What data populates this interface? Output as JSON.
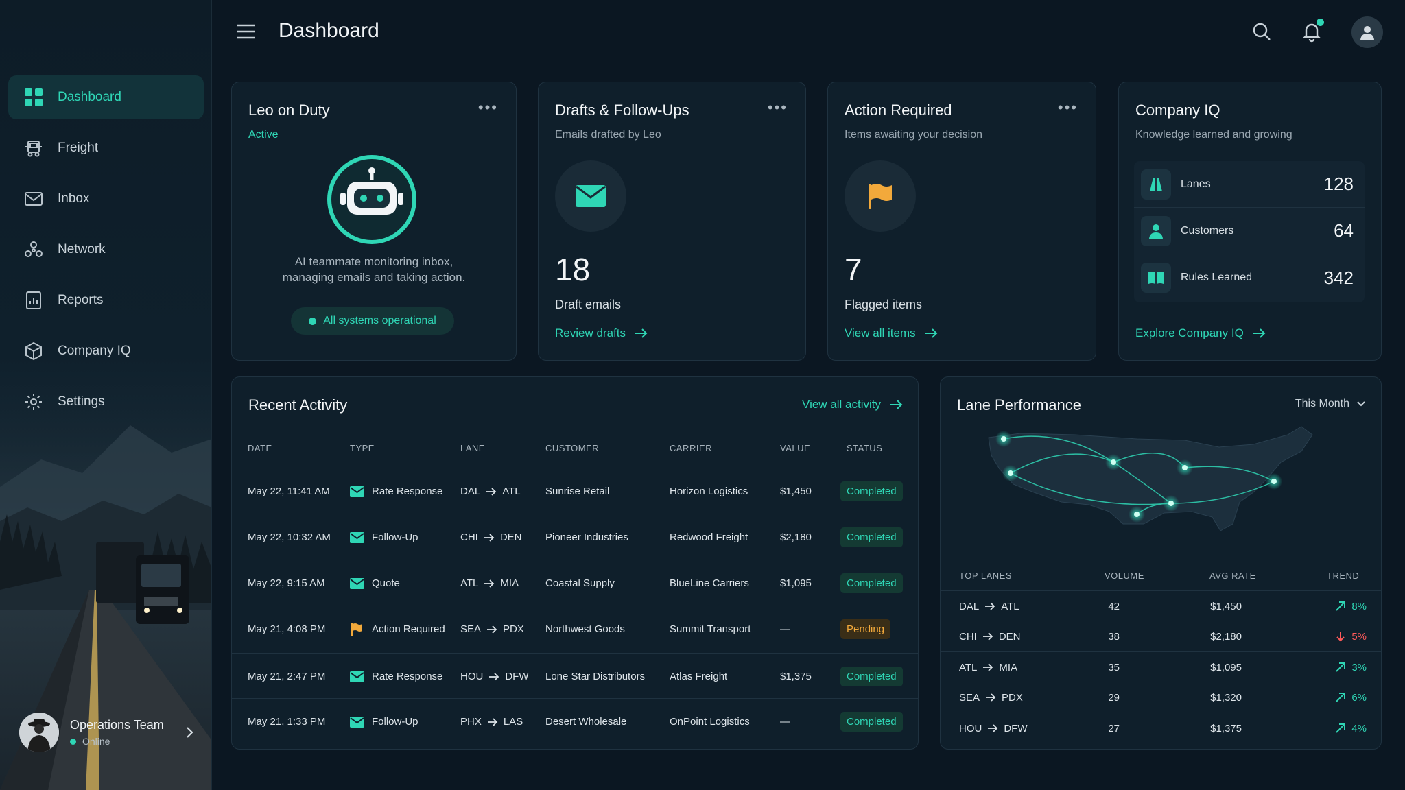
{
  "header": {
    "title": "Dashboard"
  },
  "sidebar": {
    "items": [
      {
        "label": "Dashboard",
        "icon": "grid-icon"
      },
      {
        "label": "Freight",
        "icon": "truck-icon"
      },
      {
        "label": "Inbox",
        "icon": "mail-icon"
      },
      {
        "label": "Network",
        "icon": "network-icon"
      },
      {
        "label": "Reports",
        "icon": "report-icon"
      },
      {
        "label": "Company IQ",
        "icon": "cube-icon"
      },
      {
        "label": "Settings",
        "icon": "gear-icon"
      }
    ],
    "user": {
      "name": "Operations Team",
      "status": "Online"
    }
  },
  "leo": {
    "title": "Leo on Duty",
    "status": "Active",
    "desc_line1": "AI teammate monitoring inbox,",
    "desc_line2": "managing emails and taking action.",
    "pill": "All systems operational"
  },
  "drafts": {
    "title": "Drafts & Follow-Ups",
    "subtitle": "Emails drafted by Leo",
    "count": "18",
    "label": "Draft emails",
    "link": "Review drafts"
  },
  "action": {
    "title": "Action Required",
    "subtitle": "Items awaiting your decision",
    "count": "7",
    "label": "Flagged items",
    "link": "View all items"
  },
  "iq": {
    "title": "Company IQ",
    "subtitle": "Knowledge learned and growing",
    "rows": [
      {
        "label": "Lanes",
        "value": "128"
      },
      {
        "label": "Customers",
        "value": "64"
      },
      {
        "label": "Rules Learned",
        "value": "342"
      }
    ],
    "link": "Explore Company IQ"
  },
  "activity": {
    "title": "Recent Activity",
    "link": "View all activity",
    "headers": [
      "DATE",
      "TYPE",
      "LANE",
      "CUSTOMER",
      "CARRIER",
      "VALUE",
      "STATUS"
    ],
    "rows": [
      {
        "date": "May 22, 11:41 AM",
        "type": "Rate Response",
        "icon": "mail",
        "from": "DAL",
        "to": "ATL",
        "customer": "Sunrise Retail",
        "carrier": "Horizon Logistics",
        "value": "$1,450",
        "status": "Completed"
      },
      {
        "date": "May 22, 10:32 AM",
        "type": "Follow-Up",
        "icon": "mail",
        "from": "CHI",
        "to": "DEN",
        "customer": "Pioneer Industries",
        "carrier": "Redwood Freight",
        "value": "$2,180",
        "status": "Completed"
      },
      {
        "date": "May 22, 9:15 AM",
        "type": "Quote",
        "icon": "mail",
        "from": "ATL",
        "to": "MIA",
        "customer": "Coastal Supply",
        "carrier": "BlueLine Carriers",
        "value": "$1,095",
        "status": "Completed"
      },
      {
        "date": "May 21, 4:08 PM",
        "type": "Action Required",
        "icon": "flag",
        "from": "SEA",
        "to": "PDX",
        "customer": "Northwest Goods",
        "carrier": "Summit Transport",
        "value": "—",
        "status": "Pending"
      },
      {
        "date": "May 21, 2:47 PM",
        "type": "Rate Response",
        "icon": "mail",
        "from": "HOU",
        "to": "DFW",
        "customer": "Lone Star Distributors",
        "carrier": "Atlas Freight",
        "value": "$1,375",
        "status": "Completed"
      },
      {
        "date": "May 21, 1:33 PM",
        "type": "Follow-Up",
        "icon": "mail",
        "from": "PHX",
        "to": "LAS",
        "customer": "Desert Wholesale",
        "carrier": "OnPoint Logistics",
        "value": "—",
        "status": "Completed"
      }
    ]
  },
  "lanes": {
    "title": "Lane Performance",
    "period": "This Month",
    "headers": [
      "TOP LANES",
      "VOLUME",
      "AVG RATE",
      "TREND"
    ],
    "rows": [
      {
        "from": "DAL",
        "to": "ATL",
        "volume": "42",
        "rate": "$1,450",
        "trend": "8%",
        "dir": "up"
      },
      {
        "from": "CHI",
        "to": "DEN",
        "volume": "38",
        "rate": "$2,180",
        "trend": "5%",
        "dir": "down"
      },
      {
        "from": "ATL",
        "to": "MIA",
        "volume": "35",
        "rate": "$1,095",
        "trend": "3%",
        "dir": "up"
      },
      {
        "from": "SEA",
        "to": "PDX",
        "volume": "29",
        "rate": "$1,320",
        "trend": "6%",
        "dir": "up"
      },
      {
        "from": "HOU",
        "to": "DFW",
        "volume": "27",
        "rate": "$1,375",
        "trend": "4%",
        "dir": "up"
      }
    ]
  },
  "colors": {
    "accent": "#2fd6b5",
    "warning": "#f2a93b",
    "danger": "#ff5a5a"
  }
}
